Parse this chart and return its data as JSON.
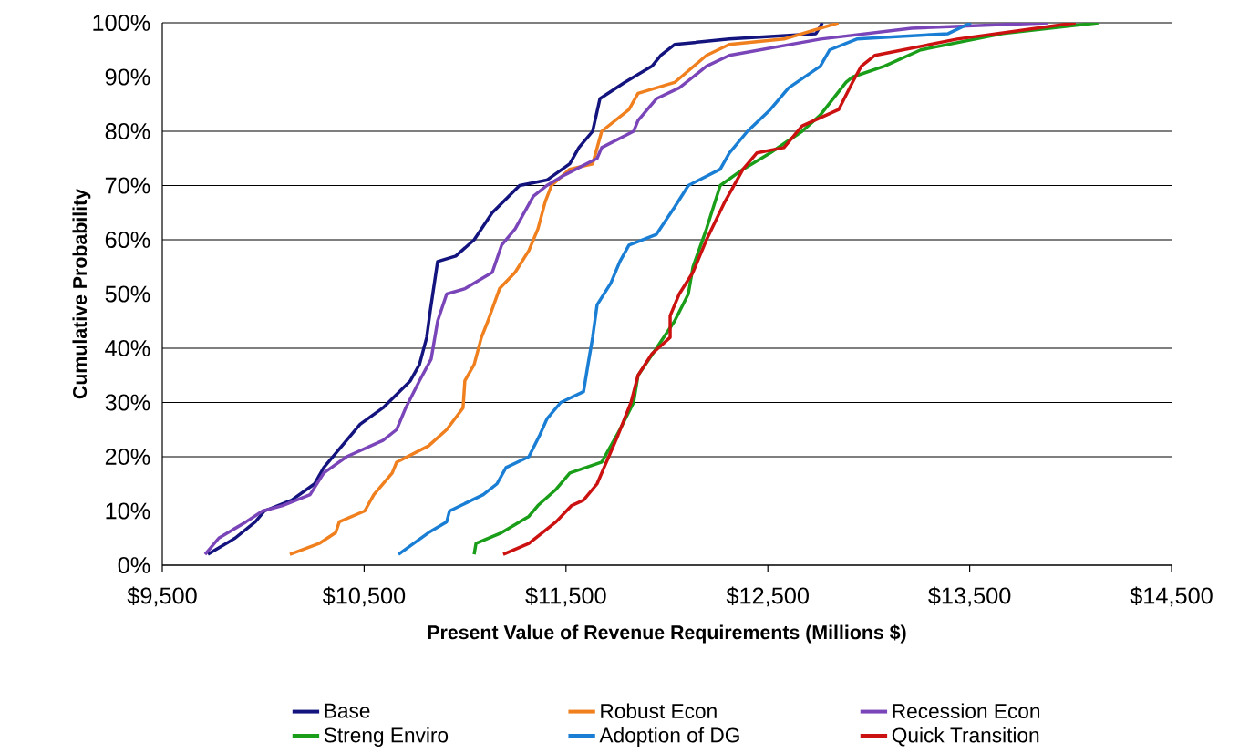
{
  "chart_data": {
    "type": "line",
    "xlabel": "Present Value of Revenue Requirements (Millions  $)",
    "ylabel": "Cumulative Probability",
    "xlim": [
      9500,
      14500
    ],
    "xticks": [
      {
        "value": 9500,
        "label": "$9,500"
      },
      {
        "value": 10500,
        "label": "$10,500"
      },
      {
        "value": 11500,
        "label": "$11,500"
      },
      {
        "value": 12500,
        "label": "$12,500"
      },
      {
        "value": 13500,
        "label": "$13,500"
      },
      {
        "value": 14500,
        "label": "$14,500"
      }
    ],
    "ylim": [
      0,
      100
    ],
    "yticks": [
      {
        "value": 0,
        "label": "0%"
      },
      {
        "value": 10,
        "label": "10%"
      },
      {
        "value": 20,
        "label": "20%"
      },
      {
        "value": 30,
        "label": "30%"
      },
      {
        "value": 40,
        "label": "40%"
      },
      {
        "value": 50,
        "label": "50%"
      },
      {
        "value": 60,
        "label": "60%"
      },
      {
        "value": 70,
        "label": "70%"
      },
      {
        "value": 80,
        "label": "80%"
      },
      {
        "value": 90,
        "label": "90%"
      },
      {
        "value": 100,
        "label": "100%"
      }
    ],
    "grid": "y",
    "legend": "bottom",
    "marker": "none",
    "line_style": "solid",
    "series": [
      {
        "name": "Base",
        "color": "#14147f",
        "x": [
          9726,
          9861,
          9961,
          10006,
          10141,
          10254,
          10300,
          10390,
          10480,
          10593,
          10729,
          10774,
          10810,
          10828,
          10864,
          10954,
          11045,
          11135,
          11270,
          11405,
          11519,
          11564,
          11632,
          11668,
          11790,
          11926,
          11970,
          12038,
          12309,
          12738,
          12770
        ],
        "values": [
          2,
          5,
          8,
          10,
          12,
          15,
          18,
          22,
          26,
          29,
          34,
          37,
          42,
          47,
          56,
          57,
          60,
          65,
          70,
          71,
          74,
          77,
          80,
          86,
          89,
          92,
          94,
          96,
          97,
          98,
          100
        ]
      },
      {
        "name": "Robust Econ",
        "color": "#f07f1e",
        "x": [
          10132,
          10277,
          10359,
          10377,
          10503,
          10548,
          10639,
          10661,
          10819,
          10909,
          10990,
          10999,
          11045,
          11081,
          11113,
          11171,
          11248,
          11316,
          11361,
          11397,
          11428,
          11519,
          11632,
          11677,
          11812,
          11857,
          12038,
          12196,
          12309,
          12580,
          12850
        ],
        "values": [
          2,
          4,
          6,
          8,
          10,
          13,
          17,
          19,
          22,
          25,
          29,
          34,
          37,
          42,
          45,
          51,
          54,
          58,
          62,
          67,
          70,
          73,
          74,
          80,
          84,
          87,
          89,
          94,
          96,
          97,
          100
        ]
      },
      {
        "name": "Recession Econ",
        "color": "#7a45b8",
        "x": [
          9712,
          9780,
          9915,
          9997,
          10096,
          10232,
          10300,
          10413,
          10593,
          10661,
          10706,
          10774,
          10832,
          10864,
          10909,
          11000,
          11135,
          11181,
          11248,
          11338,
          11405,
          11496,
          11654,
          11677,
          11835,
          11857,
          11948,
          12061,
          12129,
          12196,
          12309,
          12761,
          13212,
          13890
        ],
        "values": [
          2,
          5,
          8,
          10,
          11,
          13,
          17,
          20,
          23,
          25,
          29,
          34,
          38,
          45,
          50,
          51,
          54,
          59,
          62,
          68,
          70,
          72,
          75,
          77,
          80,
          82,
          86,
          88,
          90,
          92,
          94,
          97,
          99,
          100
        ]
      },
      {
        "name": "Streng Enviro",
        "color": "#1a9e1a",
        "x": [
          11045,
          11054,
          11181,
          11316,
          11361,
          11451,
          11519,
          11677,
          11722,
          11767,
          11835,
          11857,
          11948,
          12038,
          12106,
          12129,
          12196,
          12264,
          12377,
          12512,
          12670,
          12760,
          12887,
          12919,
          13077,
          13257,
          13664,
          14138
        ],
        "values": [
          2,
          4,
          6,
          9,
          11,
          14,
          17,
          19,
          22,
          25,
          30,
          35,
          40,
          45,
          50,
          55,
          62,
          70,
          73,
          76,
          80,
          83,
          89,
          90,
          92,
          95,
          98,
          100
        ]
      },
      {
        "name": "Adoption of DG",
        "color": "#1a7fd4",
        "x": [
          10670,
          10819,
          10909,
          10923,
          11090,
          11158,
          11203,
          11316,
          11370,
          11406,
          11474,
          11587,
          11609,
          11632,
          11654,
          11722,
          11767,
          11812,
          11948,
          12038,
          12106,
          12264,
          12309,
          12399,
          12512,
          12603,
          12760,
          12806,
          12941,
          13393,
          13506
        ],
        "values": [
          2,
          6,
          8,
          10,
          13,
          15,
          18,
          20,
          24,
          27,
          30,
          32,
          37,
          42,
          48,
          52,
          56,
          59,
          61,
          66,
          70,
          73,
          76,
          80,
          84,
          88,
          92,
          95,
          97,
          98,
          100
        ]
      },
      {
        "name": "Quick Transition",
        "color": "#cc1111",
        "x": [
          11189,
          11316,
          11383,
          11451,
          11528,
          11587,
          11654,
          11700,
          11758,
          11822,
          11857,
          11926,
          12016,
          12016,
          12061,
          12129,
          12196,
          12287,
          12377,
          12445,
          12580,
          12670,
          12851,
          12919,
          12963,
          13031,
          13438,
          14025
        ],
        "values": [
          2,
          4,
          6,
          8,
          11,
          12,
          15,
          19,
          24,
          30,
          35,
          39,
          42,
          46,
          50,
          54,
          60,
          67,
          73,
          76,
          77,
          81,
          84,
          89,
          92,
          94,
          97,
          100
        ]
      }
    ]
  }
}
